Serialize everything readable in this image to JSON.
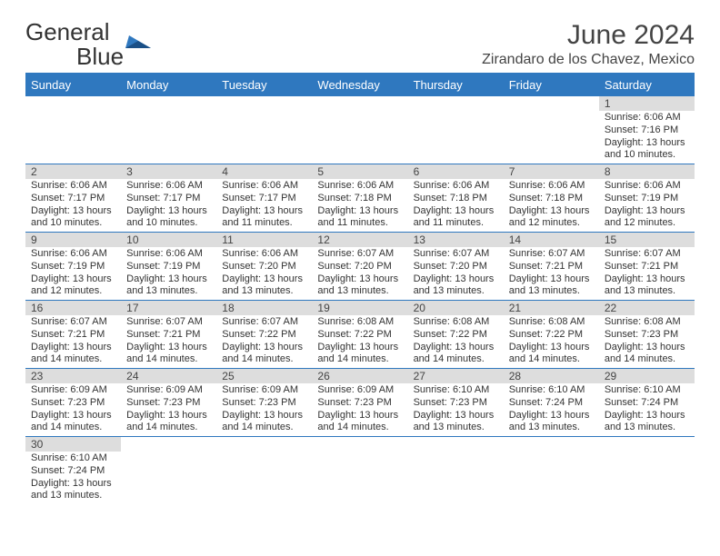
{
  "brand": {
    "name_main": "General",
    "name_accent": "Blue"
  },
  "title": {
    "month_year": "June 2024",
    "location": "Zirandaro de los Chavez, Mexico"
  },
  "colors": {
    "header_bg": "#2f78bf",
    "header_text": "#ffffff",
    "daynum_bg": "#dddddd",
    "daynum_text": "#444444",
    "cell_text": "#333333",
    "rule": "#2f78bf",
    "title_text": "#444444"
  },
  "weekdays": [
    "Sunday",
    "Monday",
    "Tuesday",
    "Wednesday",
    "Thursday",
    "Friday",
    "Saturday"
  ],
  "labels": {
    "sunrise": "Sunrise",
    "sunset": "Sunset",
    "daylight": "Daylight"
  },
  "layout": {
    "first_weekday_index": 6,
    "days_in_month": 30
  },
  "days": {
    "1": {
      "sunrise": "6:06 AM",
      "sunset": "7:16 PM",
      "daylight": "13 hours and 10 minutes."
    },
    "2": {
      "sunrise": "6:06 AM",
      "sunset": "7:17 PM",
      "daylight": "13 hours and 10 minutes."
    },
    "3": {
      "sunrise": "6:06 AM",
      "sunset": "7:17 PM",
      "daylight": "13 hours and 10 minutes."
    },
    "4": {
      "sunrise": "6:06 AM",
      "sunset": "7:17 PM",
      "daylight": "13 hours and 11 minutes."
    },
    "5": {
      "sunrise": "6:06 AM",
      "sunset": "7:18 PM",
      "daylight": "13 hours and 11 minutes."
    },
    "6": {
      "sunrise": "6:06 AM",
      "sunset": "7:18 PM",
      "daylight": "13 hours and 11 minutes."
    },
    "7": {
      "sunrise": "6:06 AM",
      "sunset": "7:18 PM",
      "daylight": "13 hours and 12 minutes."
    },
    "8": {
      "sunrise": "6:06 AM",
      "sunset": "7:19 PM",
      "daylight": "13 hours and 12 minutes."
    },
    "9": {
      "sunrise": "6:06 AM",
      "sunset": "7:19 PM",
      "daylight": "13 hours and 12 minutes."
    },
    "10": {
      "sunrise": "6:06 AM",
      "sunset": "7:19 PM",
      "daylight": "13 hours and 13 minutes."
    },
    "11": {
      "sunrise": "6:06 AM",
      "sunset": "7:20 PM",
      "daylight": "13 hours and 13 minutes."
    },
    "12": {
      "sunrise": "6:07 AM",
      "sunset": "7:20 PM",
      "daylight": "13 hours and 13 minutes."
    },
    "13": {
      "sunrise": "6:07 AM",
      "sunset": "7:20 PM",
      "daylight": "13 hours and 13 minutes."
    },
    "14": {
      "sunrise": "6:07 AM",
      "sunset": "7:21 PM",
      "daylight": "13 hours and 13 minutes."
    },
    "15": {
      "sunrise": "6:07 AM",
      "sunset": "7:21 PM",
      "daylight": "13 hours and 13 minutes."
    },
    "16": {
      "sunrise": "6:07 AM",
      "sunset": "7:21 PM",
      "daylight": "13 hours and 14 minutes."
    },
    "17": {
      "sunrise": "6:07 AM",
      "sunset": "7:21 PM",
      "daylight": "13 hours and 14 minutes."
    },
    "18": {
      "sunrise": "6:07 AM",
      "sunset": "7:22 PM",
      "daylight": "13 hours and 14 minutes."
    },
    "19": {
      "sunrise": "6:08 AM",
      "sunset": "7:22 PM",
      "daylight": "13 hours and 14 minutes."
    },
    "20": {
      "sunrise": "6:08 AM",
      "sunset": "7:22 PM",
      "daylight": "13 hours and 14 minutes."
    },
    "21": {
      "sunrise": "6:08 AM",
      "sunset": "7:22 PM",
      "daylight": "13 hours and 14 minutes."
    },
    "22": {
      "sunrise": "6:08 AM",
      "sunset": "7:23 PM",
      "daylight": "13 hours and 14 minutes."
    },
    "23": {
      "sunrise": "6:09 AM",
      "sunset": "7:23 PM",
      "daylight": "13 hours and 14 minutes."
    },
    "24": {
      "sunrise": "6:09 AM",
      "sunset": "7:23 PM",
      "daylight": "13 hours and 14 minutes."
    },
    "25": {
      "sunrise": "6:09 AM",
      "sunset": "7:23 PM",
      "daylight": "13 hours and 14 minutes."
    },
    "26": {
      "sunrise": "6:09 AM",
      "sunset": "7:23 PM",
      "daylight": "13 hours and 14 minutes."
    },
    "27": {
      "sunrise": "6:10 AM",
      "sunset": "7:23 PM",
      "daylight": "13 hours and 13 minutes."
    },
    "28": {
      "sunrise": "6:10 AM",
      "sunset": "7:24 PM",
      "daylight": "13 hours and 13 minutes."
    },
    "29": {
      "sunrise": "6:10 AM",
      "sunset": "7:24 PM",
      "daylight": "13 hours and 13 minutes."
    },
    "30": {
      "sunrise": "6:10 AM",
      "sunset": "7:24 PM",
      "daylight": "13 hours and 13 minutes."
    }
  }
}
